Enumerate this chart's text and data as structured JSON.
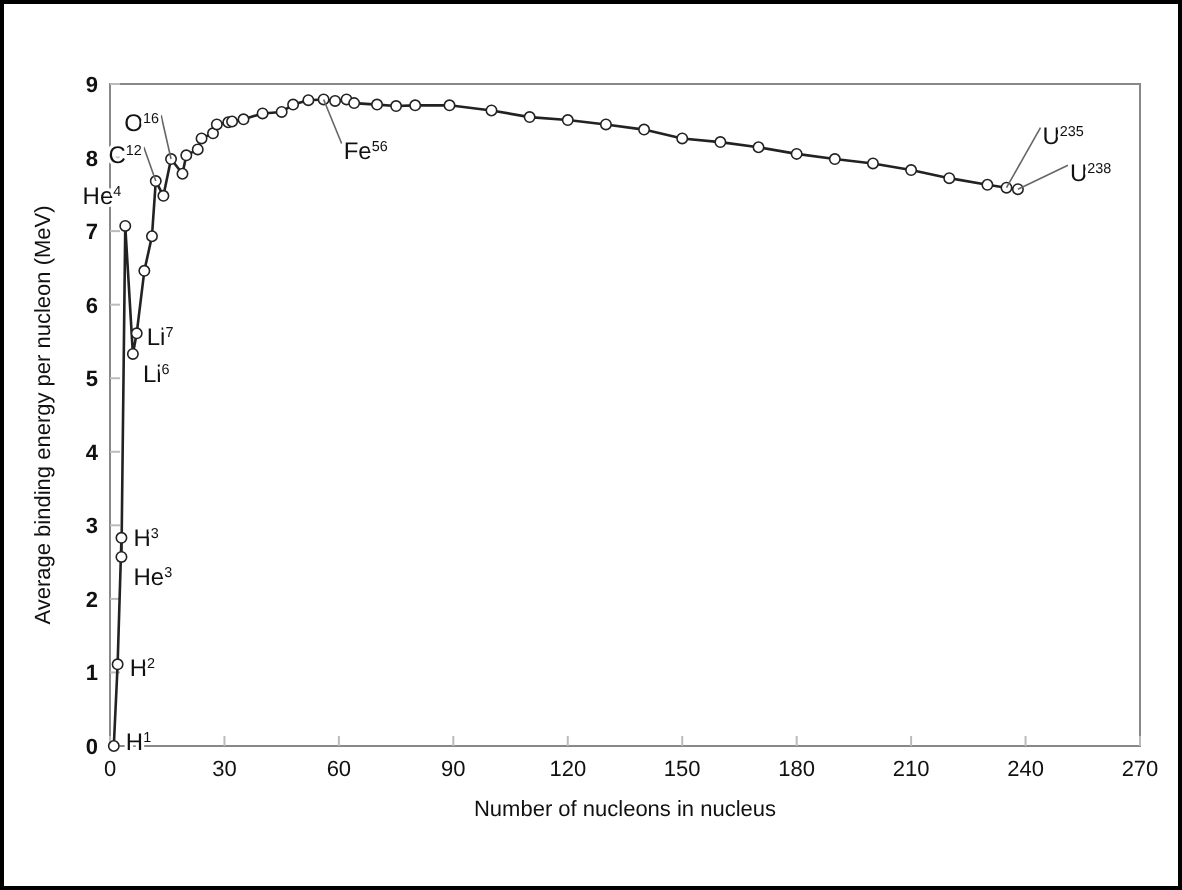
{
  "chart_data": {
    "type": "line",
    "xlabel": "Number of nucleons in nucleus",
    "ylabel": "Average binding energy per nucleon (MeV)",
    "series": [
      {
        "color": "#222222",
        "x": [
          1,
          2,
          3,
          3,
          4,
          6,
          7,
          9,
          11,
          12,
          14,
          16,
          19,
          20,
          23,
          24,
          27,
          28,
          31,
          32,
          35,
          40,
          45,
          48,
          52,
          56,
          59,
          62,
          64,
          70,
          75,
          80,
          89,
          100,
          110,
          120,
          130,
          140,
          150,
          160,
          170,
          180,
          190,
          200,
          210,
          220,
          230,
          235,
          238
        ],
        "values": [
          0,
          1.11,
          2.83,
          2.57,
          7.07,
          5.33,
          5.61,
          6.46,
          6.93,
          7.68,
          7.48,
          7.98,
          7.78,
          8.03,
          8.11,
          8.26,
          8.33,
          8.45,
          8.48,
          8.49,
          8.52,
          8.6,
          8.62,
          8.72,
          8.78,
          8.79,
          8.77,
          8.79,
          8.74,
          8.72,
          8.7,
          8.71,
          8.71,
          8.64,
          8.55,
          8.51,
          8.45,
          8.38,
          8.26,
          8.21,
          8.14,
          8.05,
          7.98,
          7.92,
          7.83,
          7.72,
          7.63,
          7.59,
          7.57
        ]
      }
    ],
    "xlim": [
      0,
      270
    ],
    "xticks": [
      0,
      30,
      60,
      90,
      120,
      150,
      180,
      210,
      240,
      270
    ],
    "ylim": [
      0,
      9
    ],
    "yticks": [
      0,
      1,
      2,
      3,
      4,
      5,
      6,
      7,
      8,
      9
    ],
    "marker": "circle",
    "line_style": "solid",
    "annotations": [
      {
        "text": "H$^{1}$",
        "x": 1,
        "y": 0
      },
      {
        "text": "H$^{2}$",
        "x": 2,
        "y": 1.11
      },
      {
        "text": "H$^{3}$",
        "x": 3,
        "y": 2.83
      },
      {
        "text": "He$^{3}$",
        "x": 3,
        "y": 2.57
      },
      {
        "text": "He$^{4}$",
        "x": 4,
        "y": 7.07
      },
      {
        "text": "Li$^{7}$",
        "x": 7,
        "y": 5.61
      },
      {
        "text": "Li$^{6}$",
        "x": 6,
        "y": 5.33
      },
      {
        "text": "C$^{12}$",
        "x": 12,
        "y": 7.68
      },
      {
        "text": "O$^{16}$",
        "x": 16,
        "y": 7.98
      },
      {
        "text": "Fe$^{56}$",
        "x": 56,
        "y": 8.79
      },
      {
        "text": "U$^{235}$",
        "x": 235,
        "y": 7.59
      },
      {
        "text": "U$^{238}$",
        "x": 238,
        "y": 7.57
      }
    ]
  }
}
